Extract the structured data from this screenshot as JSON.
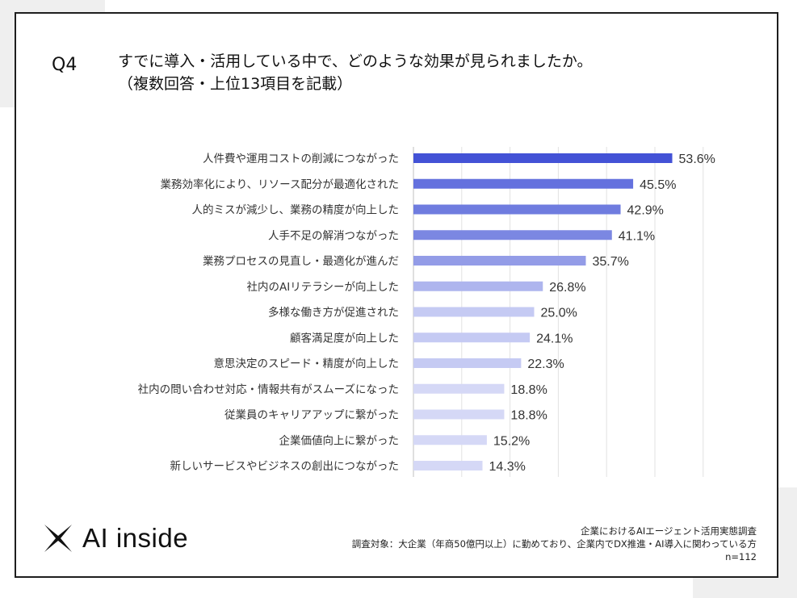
{
  "question": {
    "number": "Q4",
    "line1": "すでに導入・活用している中で、どのような効果が見られましたか。",
    "line2": "（複数回答・上位13項目を記載）"
  },
  "chart_data": {
    "type": "bar",
    "orientation": "horizontal",
    "xlim": [
      0,
      60
    ],
    "categories": [
      "人件費や運用コストの削減につながった",
      "業務効率化により、リソース配分が最適化された",
      "人的ミスが減少し、業務の精度が向上した",
      "人手不足の解消つながった",
      "業務プロセスの見直し・最適化が進んだ",
      "社内のAIリテラシーが向上した",
      "多様な働き方が促進された",
      "顧客満足度が向上した",
      "意思決定のスピード・精度が向上した",
      "社内の問い合わせ対応・情報共有がスムーズになった",
      "従業員のキャリアアップに繋がった",
      "企業価値向上に繋がった",
      "新しいサービスやビジネスの創出につながった"
    ],
    "values": [
      53.6,
      45.5,
      42.9,
      41.1,
      35.7,
      26.8,
      25.0,
      24.1,
      22.3,
      18.8,
      18.8,
      15.2,
      14.3
    ],
    "labels": [
      "53.6%",
      "45.5%",
      "42.9%",
      "41.1%",
      "35.7%",
      "26.8%",
      "25.0%",
      "24.1%",
      "22.3%",
      "18.8%",
      "18.8%",
      "15.2%",
      "14.3%"
    ],
    "colors": [
      "#4352d6",
      "#6471de",
      "#6f7cdf",
      "#7b87e2",
      "#939ce7",
      "#aeb5ee",
      "#c5caf3",
      "#c5caf3",
      "#c5caf3",
      "#d5d8f6",
      "#d5d8f6",
      "#d5d8f6",
      "#d5d8f6"
    ],
    "grid": true
  },
  "logo": {
    "text": "AI inside"
  },
  "footer": {
    "line1": "企業におけるAIエージェント活用実態調査",
    "line2": "調査対象：大企業（年商50億円以上）に勤めており、企業内でDX推進・AI導入に関わっている方",
    "line3": "n=112"
  }
}
